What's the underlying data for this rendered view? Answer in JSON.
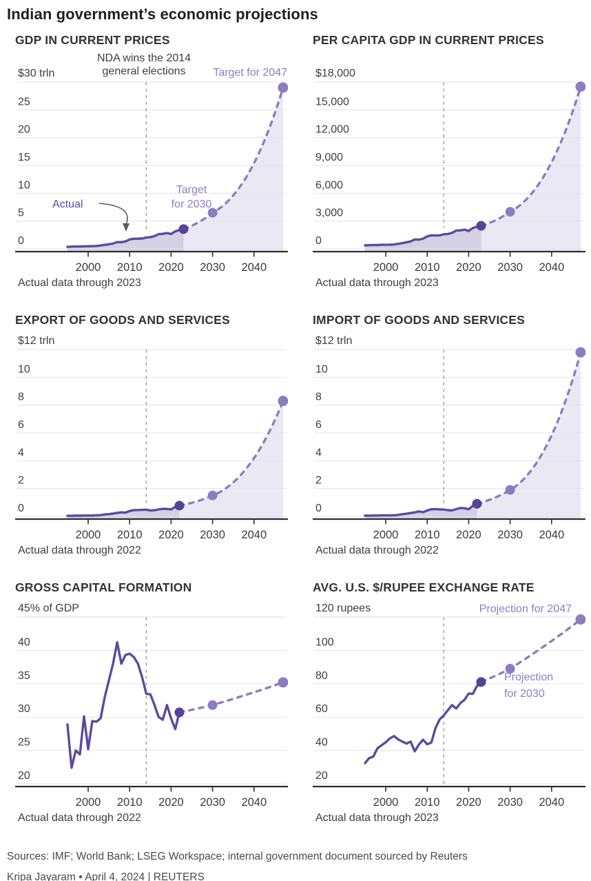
{
  "title": "Indian government’s economic projections",
  "footer": {
    "sources": "Sources: IMF; World Bank; LSEG Workspace; internal government document sourced by Reuters",
    "byline": "Kripa Jayaram • April 4, 2024 | REUTERS"
  },
  "style_colors": {
    "actual_line": "#5b4a9e",
    "actual_dot": "#564296",
    "projection": "#8d7cc2",
    "actual_fill": "#d5d0e3",
    "projection_fill": "#eae8f3",
    "gridline": "#e3e3e3",
    "axis": "#2f2d33",
    "event_line": "#9c9c9c",
    "annotation_dark": "#3f3f3f",
    "arrow": "#5a5a5a"
  },
  "chart_data": [
    {
      "type": "line",
      "title": "GDP IN CURRENT PRICES",
      "unit_label": "$30 trln",
      "caption": "Actual data through 2023",
      "y_min": 0,
      "y_max": 30,
      "y_ticks": [
        0,
        5,
        10,
        15,
        20,
        25
      ],
      "y_tick_labels": [
        "0",
        "5",
        "10",
        "15",
        "20",
        "25"
      ],
      "x_ticks": [
        2000,
        2010,
        2020,
        2030,
        2040
      ],
      "x_range": [
        1994,
        2048
      ],
      "event_year": 2014,
      "area_fill": true,
      "actual": [
        [
          1995,
          0.36
        ],
        [
          1996,
          0.4
        ],
        [
          1997,
          0.42
        ],
        [
          1998,
          0.43
        ],
        [
          1999,
          0.46
        ],
        [
          2000,
          0.47
        ],
        [
          2001,
          0.49
        ],
        [
          2002,
          0.52
        ],
        [
          2003,
          0.62
        ],
        [
          2004,
          0.72
        ],
        [
          2005,
          0.83
        ],
        [
          2006,
          0.95
        ],
        [
          2007,
          1.22
        ],
        [
          2008,
          1.2
        ],
        [
          2009,
          1.34
        ],
        [
          2010,
          1.68
        ],
        [
          2011,
          1.82
        ],
        [
          2012,
          1.83
        ],
        [
          2013,
          1.86
        ],
        [
          2014,
          2.04
        ],
        [
          2015,
          2.1
        ],
        [
          2016,
          2.29
        ],
        [
          2017,
          2.65
        ],
        [
          2018,
          2.7
        ],
        [
          2019,
          2.84
        ],
        [
          2020,
          2.67
        ],
        [
          2021,
          3.15
        ],
        [
          2022,
          3.39
        ],
        [
          2023,
          3.55
        ]
      ],
      "projections": [
        [
          2030,
          6.5
        ],
        [
          2047,
          29
        ]
      ],
      "annotations": {
        "event_label": [
          "NDA wins the 2014",
          "general elections"
        ],
        "target_2047": "Target for 2047",
        "target_2030": [
          "Target",
          "for 2030"
        ],
        "actual_label": "Actual"
      }
    },
    {
      "type": "line",
      "title": "PER CAPITA GDP IN CURRENT PRICES",
      "unit_label": "$18,000",
      "caption": "Actual data through 2023",
      "y_min": 0,
      "y_max": 18000,
      "y_ticks": [
        0,
        3000,
        6000,
        9000,
        12000,
        15000
      ],
      "y_tick_labels": [
        "0",
        "3,000",
        "6,000",
        "9,000",
        "12,000",
        "15,000"
      ],
      "x_ticks": [
        2000,
        2010,
        2020,
        2030,
        2040
      ],
      "x_range": [
        1994,
        2048
      ],
      "event_year": 2014,
      "area_fill": true,
      "actual": [
        [
          1995,
          374
        ],
        [
          1996,
          400
        ],
        [
          1997,
          415
        ],
        [
          1998,
          413
        ],
        [
          1999,
          441
        ],
        [
          2000,
          443
        ],
        [
          2001,
          451
        ],
        [
          2002,
          470
        ],
        [
          2003,
          546
        ],
        [
          2004,
          621
        ],
        [
          2005,
          711
        ],
        [
          2006,
          802
        ],
        [
          2007,
          1022
        ],
        [
          2008,
          993
        ],
        [
          2009,
          1096
        ],
        [
          2010,
          1351
        ],
        [
          2011,
          1458
        ],
        [
          2012,
          1444
        ],
        [
          2013,
          1450
        ],
        [
          2014,
          1574
        ],
        [
          2015,
          1606
        ],
        [
          2016,
          1733
        ],
        [
          2017,
          1981
        ],
        [
          2018,
          1998
        ],
        [
          2019,
          2072
        ],
        [
          2020,
          1933
        ],
        [
          2021,
          2250
        ],
        [
          2022,
          2388
        ],
        [
          2023,
          2485
        ]
      ],
      "projections": [
        [
          2030,
          4000
        ],
        [
          2047,
          17500
        ]
      ],
      "annotations": {}
    },
    {
      "type": "line",
      "title": "EXPORT OF GOODS AND SERVICES",
      "unit_label": "$12 trln",
      "caption": "Actual data through 2022",
      "y_min": 0,
      "y_max": 12,
      "y_ticks": [
        0,
        2,
        4,
        6,
        8,
        10
      ],
      "y_tick_labels": [
        "0",
        "2",
        "4",
        "6",
        "8",
        "10"
      ],
      "x_ticks": [
        2000,
        2010,
        2020,
        2030,
        2040
      ],
      "x_range": [
        1994,
        2048
      ],
      "event_year": 2014,
      "area_fill": true,
      "actual": [
        [
          1995,
          0.04
        ],
        [
          1996,
          0.04
        ],
        [
          1997,
          0.05
        ],
        [
          1998,
          0.05
        ],
        [
          1999,
          0.06
        ],
        [
          2000,
          0.06
        ],
        [
          2001,
          0.06
        ],
        [
          2002,
          0.07
        ],
        [
          2003,
          0.09
        ],
        [
          2004,
          0.13
        ],
        [
          2005,
          0.16
        ],
        [
          2006,
          0.2
        ],
        [
          2007,
          0.25
        ],
        [
          2008,
          0.29
        ],
        [
          2009,
          0.27
        ],
        [
          2010,
          0.38
        ],
        [
          2011,
          0.45
        ],
        [
          2012,
          0.45
        ],
        [
          2013,
          0.47
        ],
        [
          2014,
          0.48
        ],
        [
          2015,
          0.42
        ],
        [
          2016,
          0.44
        ],
        [
          2017,
          0.5
        ],
        [
          2018,
          0.54
        ],
        [
          2019,
          0.53
        ],
        [
          2020,
          0.5
        ],
        [
          2021,
          0.68
        ],
        [
          2022,
          0.77
        ]
      ],
      "projections": [
        [
          2030,
          1.5
        ],
        [
          2047,
          8.3
        ]
      ],
      "annotations": {}
    },
    {
      "type": "line",
      "title": "IMPORT OF GOODS AND SERVICES",
      "unit_label": "$12 trln",
      "caption": "Actual data through 2022",
      "y_min": 0,
      "y_max": 12,
      "y_ticks": [
        0,
        2,
        4,
        6,
        8,
        10
      ],
      "y_tick_labels": [
        "0",
        "2",
        "4",
        "6",
        "8",
        "10"
      ],
      "x_ticks": [
        2000,
        2010,
        2020,
        2030,
        2040
      ],
      "x_range": [
        1994,
        2048
      ],
      "event_year": 2014,
      "area_fill": true,
      "actual": [
        [
          1995,
          0.05
        ],
        [
          1996,
          0.05
        ],
        [
          1997,
          0.06
        ],
        [
          1998,
          0.06
        ],
        [
          1999,
          0.07
        ],
        [
          2000,
          0.07
        ],
        [
          2001,
          0.07
        ],
        [
          2002,
          0.08
        ],
        [
          2003,
          0.1
        ],
        [
          2004,
          0.15
        ],
        [
          2005,
          0.19
        ],
        [
          2006,
          0.24
        ],
        [
          2007,
          0.29
        ],
        [
          2008,
          0.35
        ],
        [
          2009,
          0.3
        ],
        [
          2010,
          0.42
        ],
        [
          2011,
          0.51
        ],
        [
          2012,
          0.52
        ],
        [
          2013,
          0.5
        ],
        [
          2014,
          0.49
        ],
        [
          2015,
          0.44
        ],
        [
          2016,
          0.43
        ],
        [
          2017,
          0.52
        ],
        [
          2018,
          0.6
        ],
        [
          2019,
          0.58
        ],
        [
          2020,
          0.51
        ],
        [
          2021,
          0.76
        ],
        [
          2022,
          0.9
        ]
      ],
      "projections": [
        [
          2030,
          1.9
        ],
        [
          2047,
          11.8
        ]
      ],
      "annotations": {}
    },
    {
      "type": "line",
      "title": "GROSS CAPITAL FORMATION",
      "unit_label": "45% of GDP",
      "caption": "Actual data through 2022",
      "y_min": 20,
      "y_max": 45,
      "y_ticks": [
        20,
        25,
        30,
        35,
        40
      ],
      "y_tick_labels": [
        "20",
        "25",
        "30",
        "35",
        "40"
      ],
      "x_ticks": [
        2000,
        2010,
        2020,
        2030,
        2040
      ],
      "x_range": [
        1994,
        2048
      ],
      "event_year": 2014,
      "area_fill": false,
      "actual": [
        [
          1995,
          28.9
        ],
        [
          1996,
          22.4
        ],
        [
          1997,
          25.0
        ],
        [
          1998,
          24.4
        ],
        [
          1999,
          30.1
        ],
        [
          2000,
          25.2
        ],
        [
          2001,
          29.4
        ],
        [
          2002,
          29.3
        ],
        [
          2003,
          29.8
        ],
        [
          2004,
          33.0
        ],
        [
          2005,
          35.5
        ],
        [
          2006,
          38.0
        ],
        [
          2007,
          41.2
        ],
        [
          2008,
          38.0
        ],
        [
          2009,
          39.3
        ],
        [
          2010,
          39.5
        ],
        [
          2011,
          39.0
        ],
        [
          2012,
          38.0
        ],
        [
          2013,
          36.0
        ],
        [
          2014,
          33.5
        ],
        [
          2015,
          33.4
        ],
        [
          2016,
          31.8
        ],
        [
          2017,
          30.0
        ],
        [
          2018,
          29.6
        ],
        [
          2019,
          31.8
        ],
        [
          2020,
          29.8
        ],
        [
          2021,
          28.2
        ],
        [
          2022,
          30.7
        ]
      ],
      "projections": [
        [
          2030,
          31.8
        ],
        [
          2047,
          35.2
        ]
      ],
      "annotations": {}
    },
    {
      "type": "line",
      "title": "AVG. U.S. $/RUPEE EXCHANGE RATE",
      "unit_label": "120 rupees",
      "caption": "Actual data through 2023",
      "y_min": 20,
      "y_max": 120,
      "y_ticks": [
        20,
        40,
        60,
        80,
        100
      ],
      "y_tick_labels": [
        "20",
        "40",
        "60",
        "80",
        "100"
      ],
      "x_ticks": [
        2000,
        2010,
        2020,
        2030,
        2040
      ],
      "x_range": [
        1994,
        2048
      ],
      "event_year": 2014,
      "area_fill": false,
      "actual": [
        [
          1995,
          32.4
        ],
        [
          1996,
          35.4
        ],
        [
          1997,
          36.3
        ],
        [
          1998,
          41.3
        ],
        [
          1999,
          43.1
        ],
        [
          2000,
          44.9
        ],
        [
          2001,
          47.2
        ],
        [
          2002,
          48.6
        ],
        [
          2003,
          46.6
        ],
        [
          2004,
          45.3
        ],
        [
          2005,
          44.1
        ],
        [
          2006,
          45.3
        ],
        [
          2007,
          39.5
        ],
        [
          2008,
          43.5
        ],
        [
          2009,
          46.4
        ],
        [
          2010,
          43.7
        ],
        [
          2011,
          44.7
        ],
        [
          2012,
          53.4
        ],
        [
          2013,
          58.6
        ],
        [
          2014,
          61.0
        ],
        [
          2015,
          64.2
        ],
        [
          2016,
          67.2
        ],
        [
          2017,
          65.1
        ],
        [
          2018,
          68.4
        ],
        [
          2019,
          70.4
        ],
        [
          2020,
          74.1
        ],
        [
          2021,
          73.9
        ],
        [
          2022,
          78.6
        ],
        [
          2023,
          81.0
        ]
      ],
      "projections": [
        [
          2030,
          89
        ],
        [
          2047,
          118.5
        ]
      ],
      "annotations": {
        "proj_2047": "Projection for 2047",
        "proj_2030": [
          "Projection",
          "for 2030"
        ]
      }
    }
  ]
}
